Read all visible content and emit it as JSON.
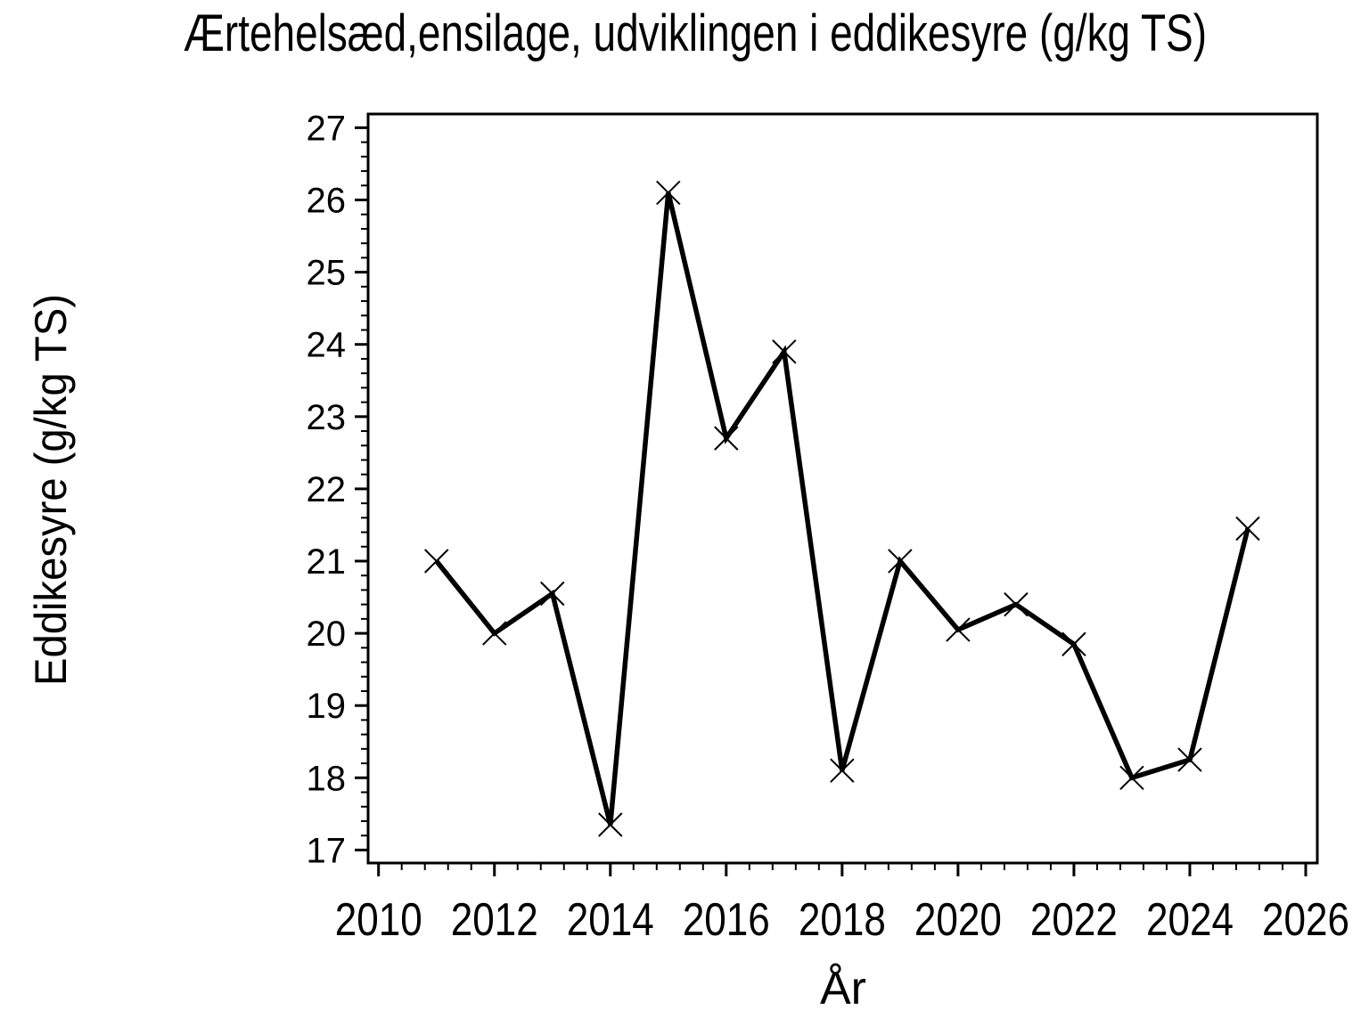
{
  "page": {
    "background_color": "#ffffff",
    "foreground_color": "#000000"
  },
  "chart_data": {
    "type": "line",
    "title": "Ærtehelsæd,ensilage, udviklingen i eddikesyre (g/kg TS)",
    "xlabel": "År",
    "ylabel": "Eddikesyre (g/kg TS)",
    "x": [
      2011,
      2012,
      2013,
      2014,
      2015,
      2016,
      2017,
      2018,
      2019,
      2020,
      2021,
      2022,
      2023,
      2024,
      2025
    ],
    "series": [
      {
        "name": "Eddikesyre (g/kg TS)",
        "values": [
          21.0,
          20.0,
          20.55,
          17.35,
          26.1,
          22.7,
          23.9,
          18.1,
          21.0,
          20.05,
          20.4,
          19.85,
          18.0,
          18.25,
          21.45
        ]
      }
    ],
    "marker": "x",
    "line_color": "#000000",
    "marker_color": "#000000",
    "grid": false,
    "legend": false,
    "x_axis": {
      "range_min": 2009.82,
      "range_max": 2026.2,
      "major_tick_min": 2010,
      "major_tick_max": 2026,
      "major_step": 2,
      "minor_step": 0.4,
      "tick_labels": [
        "2010",
        "2012",
        "2014",
        "2016",
        "2018",
        "2020",
        "2022",
        "2024",
        "2026"
      ]
    },
    "y_axis": {
      "range_min": 16.82,
      "range_max": 27.19,
      "major_tick_min": 17,
      "major_tick_max": 27,
      "major_step": 1,
      "minor_step": 0.2,
      "tick_labels": [
        "17",
        "18",
        "19",
        "20",
        "21",
        "22",
        "23",
        "24",
        "25",
        "26",
        "27"
      ]
    }
  }
}
